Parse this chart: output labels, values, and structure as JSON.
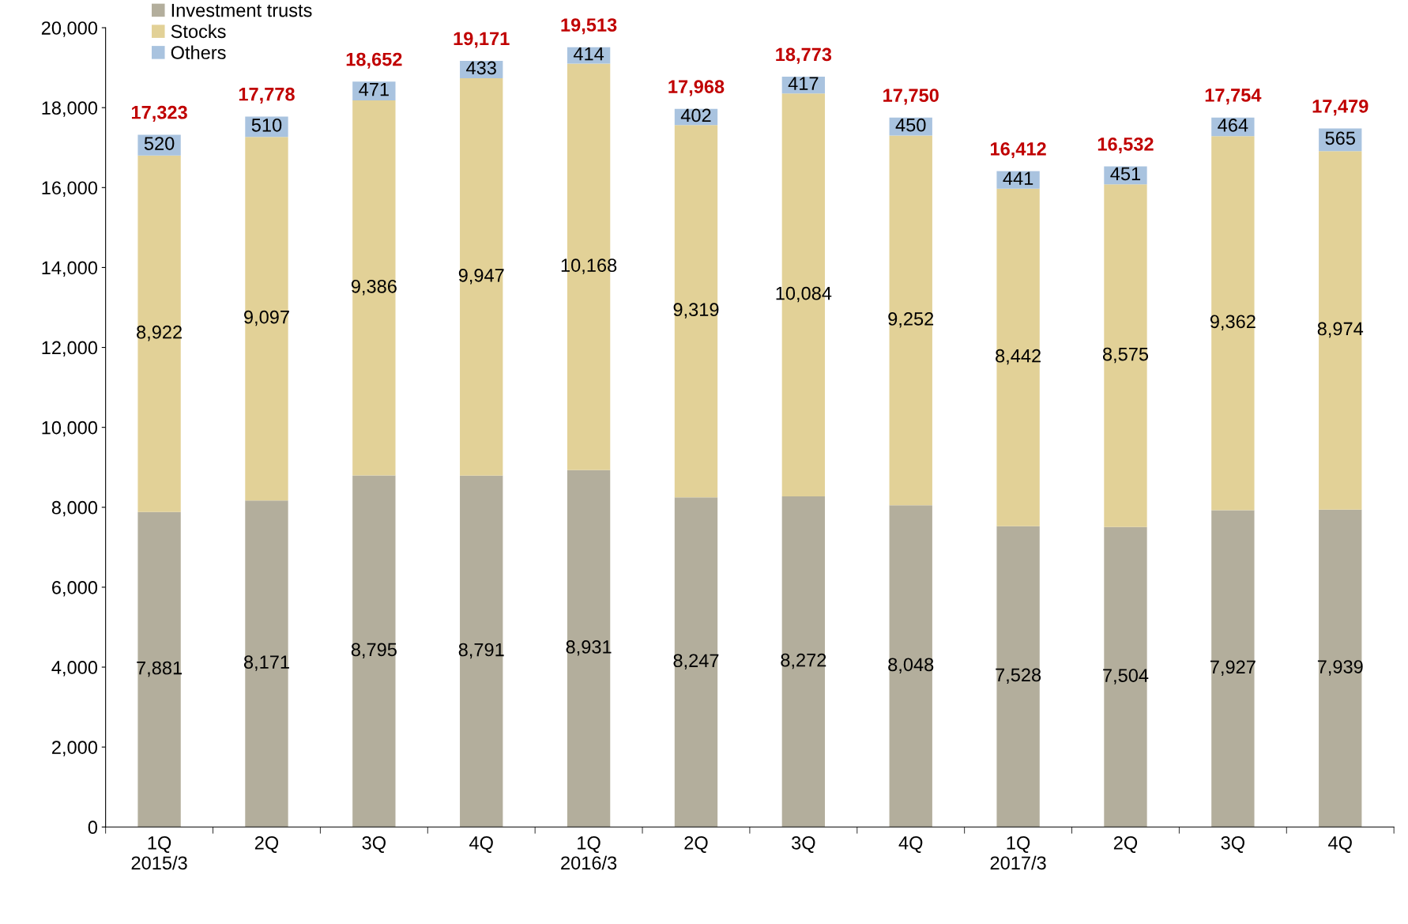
{
  "chart_data": {
    "type": "bar",
    "stacked": true,
    "categories": [
      "1Q\n2015/3",
      "2Q",
      "3Q",
      "4Q",
      "1Q\n2016/3",
      "2Q",
      "3Q",
      "4Q",
      "1Q\n2017/3",
      "2Q",
      "3Q",
      "4Q"
    ],
    "series": [
      {
        "name": "Investment trusts",
        "color": "#b3ae9c",
        "values": [
          7881,
          8171,
          8795,
          8791,
          8931,
          8247,
          8272,
          8048,
          7528,
          7504,
          7927,
          7939
        ],
        "value_labels": [
          "7,881",
          "8,171",
          "8,795",
          "8,791",
          "8,931",
          "8,247",
          "8,272",
          "8,048",
          "7,528",
          "7,504",
          "7,927",
          "7,939"
        ]
      },
      {
        "name": "Stocks",
        "color": "#e2d197",
        "values": [
          8922,
          9097,
          9386,
          9947,
          10168,
          9319,
          10084,
          9252,
          8442,
          8575,
          9362,
          8974
        ],
        "value_labels": [
          "8,922",
          "9,097",
          "9,386",
          "9,947",
          "10,168",
          "9,319",
          "10,084",
          "9,252",
          "8,442",
          "8,575",
          "9,362",
          "8,974"
        ]
      },
      {
        "name": "Others",
        "color": "#a9c3df",
        "values": [
          520,
          510,
          471,
          433,
          414,
          402,
          417,
          450,
          441,
          451,
          464,
          565
        ],
        "value_labels": [
          "520",
          "510",
          "471",
          "433",
          "414",
          "402",
          "417",
          "450",
          "441",
          "451",
          "464",
          "565"
        ]
      }
    ],
    "totals": [
      "17,323",
      "17,778",
      "18,652",
      "19,171",
      "19,513",
      "17,968",
      "18,773",
      "17,750",
      "16,412",
      "16,532",
      "17,754",
      "17,479"
    ],
    "ylim": [
      0,
      20000
    ],
    "yticks": [
      0,
      {
        "value": 2000,
        "label": "2,000"
      },
      {
        "value": 4000,
        "label": "4,000"
      },
      {
        "value": 6000,
        "label": "6,000"
      },
      {
        "value": 8000,
        "label": "8,000"
      },
      {
        "value": 10000,
        "label": "10,000"
      },
      {
        "value": 12000,
        "label": "12,000"
      },
      {
        "value": 14000,
        "label": "14,000"
      },
      {
        "value": 16000,
        "label": "16,000"
      },
      {
        "value": 18000,
        "label": "18,000"
      },
      {
        "value": 20000,
        "label": "20,000"
      }
    ],
    "grid": false,
    "legend": "top left"
  }
}
